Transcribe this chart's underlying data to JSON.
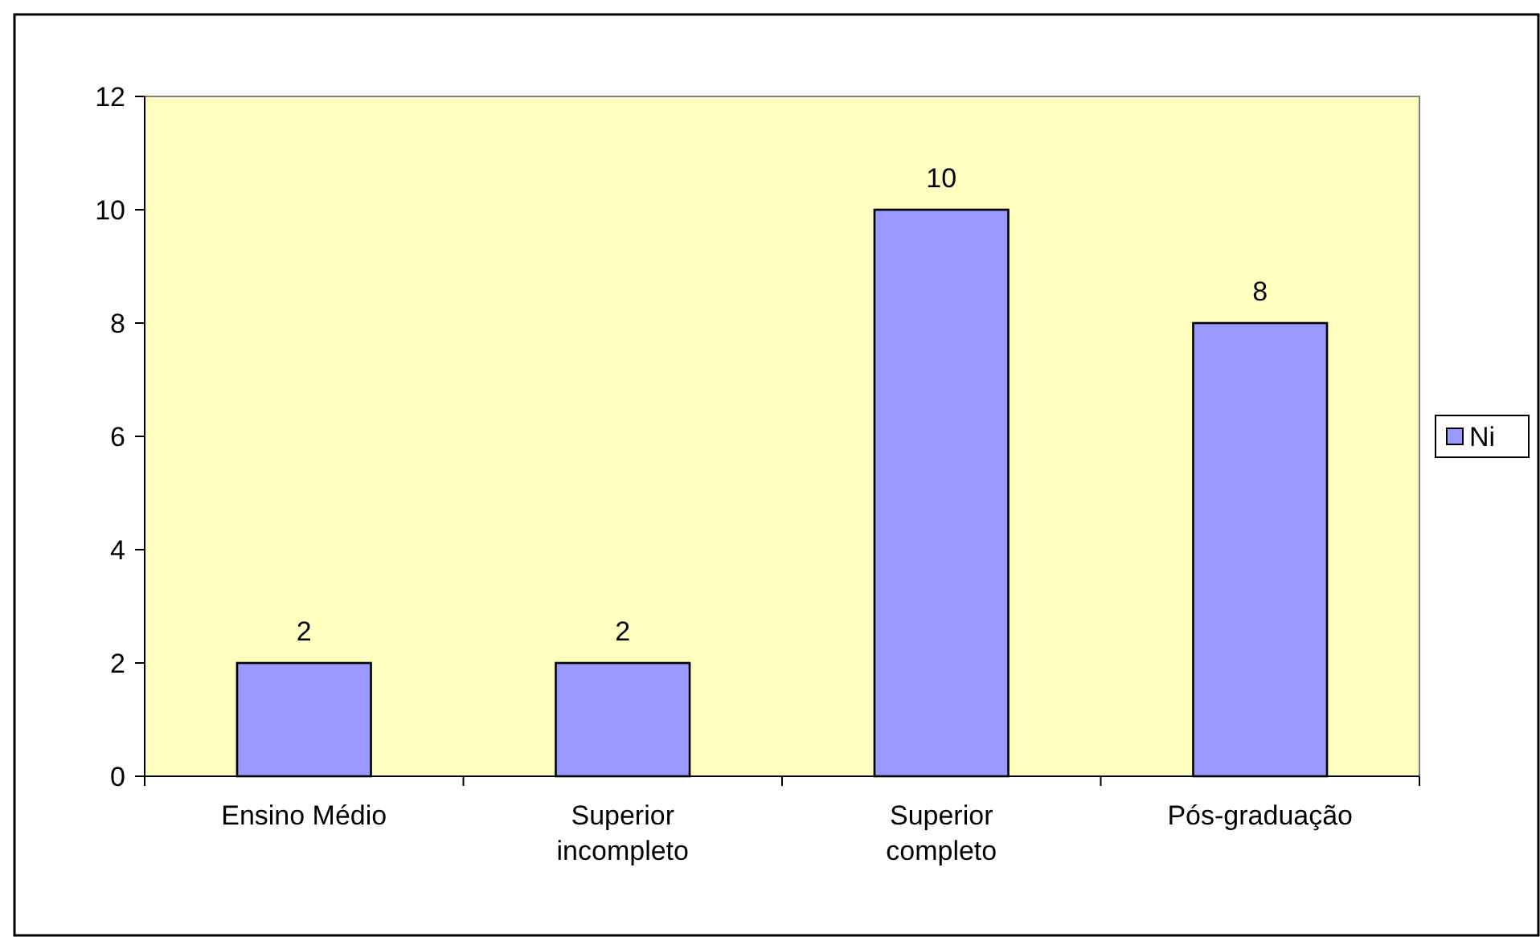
{
  "chart_data": {
    "type": "bar",
    "categories": [
      "Ensino Médio",
      "Superior incompleto",
      "Superior completo",
      "Pós-graduação"
    ],
    "series": [
      {
        "name": "Ni",
        "color": "#9999ff",
        "values": [
          2,
          2,
          10,
          8
        ]
      }
    ],
    "ylim": [
      0,
      12
    ],
    "yticks": [
      0,
      2,
      4,
      6,
      8,
      10,
      12
    ],
    "data_labels": true,
    "grid": false,
    "legend": "right"
  }
}
